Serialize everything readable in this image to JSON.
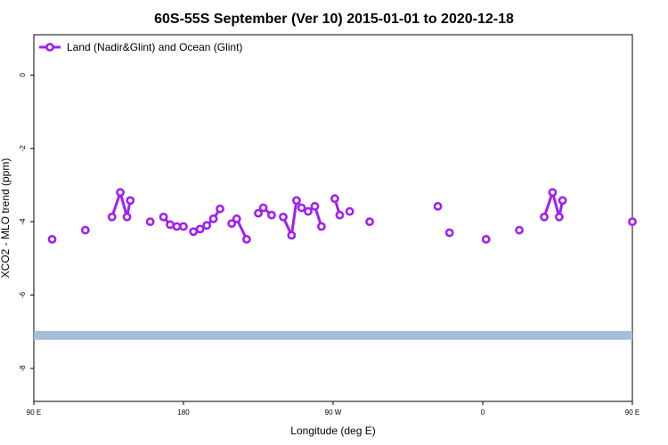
{
  "chart_data": {
    "type": "line",
    "title": "60S-55S September (Ver 10)   2015-01-01 to 2020-12-18",
    "xlabel": "Longitude (deg E)",
    "ylabel": "XCO2 - MLO trend (ppm)",
    "xlim": [
      90,
      450
    ],
    "ylim": [
      -8.9,
      1.1
    ],
    "x_ticks": [
      {
        "value": 90,
        "label": "90 E"
      },
      {
        "value": 180,
        "label": "180"
      },
      {
        "value": 270,
        "label": "90 W"
      },
      {
        "value": 360,
        "label": "0"
      },
      {
        "value": 450,
        "label": "90 E"
      },
      {
        "value": 540,
        "label": "180"
      }
    ],
    "y_ticks": [
      0,
      -2,
      -4,
      -6,
      -8
    ],
    "legend": {
      "position": "top-left",
      "label": "Land (Nadir&Glint) and Ocean (Glint)"
    },
    "band": {
      "y_center": -7.1,
      "y_halfwidth": 0.12,
      "color": "#a6bddb"
    },
    "series": [
      {
        "name": "Land (Nadir&Glint) and Ocean (Glint)",
        "color": "#a020f0",
        "segments": [
          [
            [
              101,
              -4.48
            ]
          ],
          [
            [
              121,
              -4.23
            ]
          ],
          [
            [
              137,
              -3.87
            ],
            [
              142,
              -3.2
            ],
            [
              146,
              -3.87
            ],
            [
              148,
              -3.42
            ]
          ],
          [
            [
              160,
              -4.0
            ]
          ],
          [
            [
              168,
              -3.87
            ],
            [
              172,
              -4.08
            ],
            [
              176,
              -4.13
            ],
            [
              180,
              -4.13
            ]
          ],
          [
            [
              186,
              -4.27
            ],
            [
              190,
              -4.2
            ],
            [
              194,
              -4.1
            ],
            [
              198,
              -3.92
            ],
            [
              202,
              -3.65
            ]
          ],
          [
            [
              209,
              -4.05
            ],
            [
              212,
              -3.92
            ],
            [
              218,
              -4.48
            ]
          ],
          [
            [
              225,
              -3.77
            ],
            [
              228,
              -3.62
            ],
            [
              233,
              -3.82
            ]
          ],
          [
            [
              240,
              -3.87
            ],
            [
              245,
              -4.37
            ],
            [
              248,
              -3.42
            ],
            [
              251,
              -3.62
            ],
            [
              255,
              -3.72
            ],
            [
              259,
              -3.58
            ],
            [
              263,
              -4.13
            ]
          ],
          [
            [
              271,
              -3.37
            ],
            [
              274,
              -3.82
            ]
          ],
          [
            [
              280,
              -3.72
            ]
          ],
          [
            [
              292,
              -4.0
            ]
          ],
          [
            [
              333,
              -3.58
            ]
          ],
          [
            [
              340,
              -4.3
            ]
          ],
          [
            [
              362,
              -4.48
            ]
          ],
          [
            [
              382,
              -4.23
            ]
          ],
          [
            [
              397,
              -3.87
            ],
            [
              402,
              -3.2
            ],
            [
              406,
              -3.87
            ],
            [
              408,
              -3.42
            ]
          ],
          [
            [
              450,
              -4.0
            ]
          ]
        ]
      }
    ]
  }
}
